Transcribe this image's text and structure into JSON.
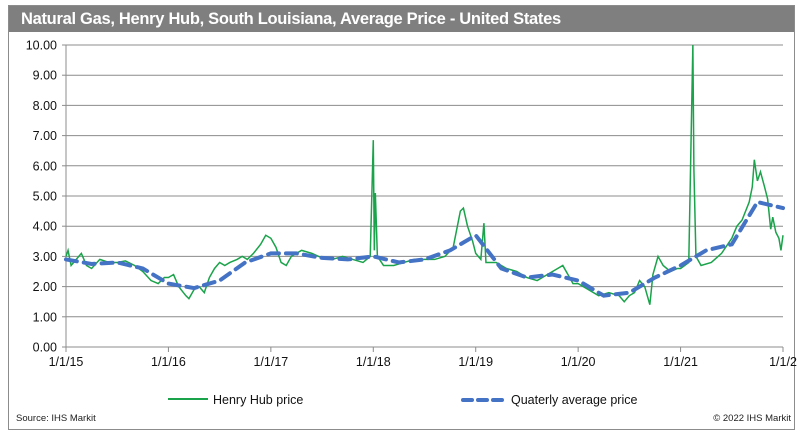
{
  "chart_data": {
    "type": "line",
    "title": "Natural Gas, Henry Hub, South Louisiana, Average Price - United States",
    "xlabel": "",
    "ylabel": "",
    "ylim": [
      0,
      10
    ],
    "xlim": [
      2015,
      2022
    ],
    "yticks": [
      "0.00",
      "1.00",
      "2.00",
      "3.00",
      "4.00",
      "5.00",
      "6.00",
      "7.00",
      "8.00",
      "9.00",
      "10.00"
    ],
    "xticks": [
      {
        "label": "1/1/15",
        "x": 2015
      },
      {
        "label": "1/1/16",
        "x": 2016
      },
      {
        "label": "1/1/17",
        "x": 2017
      },
      {
        "label": "1/1/18",
        "x": 2018
      },
      {
        "label": "1/1/19",
        "x": 2019
      },
      {
        "label": "1/1/20",
        "x": 2020
      },
      {
        "label": "1/1/21",
        "x": 2021
      },
      {
        "label": "1/1/2",
        "x": 2022
      }
    ],
    "grid": "horizontal",
    "legend_position": "bottom",
    "series": [
      {
        "name": "Henry Hub price",
        "color": "#1aa34a",
        "style": "solid",
        "x": [
          2015.0,
          2015.02,
          2015.05,
          2015.1,
          2015.15,
          2015.2,
          2015.25,
          2015.33,
          2015.42,
          2015.5,
          2015.58,
          2015.67,
          2015.75,
          2015.83,
          2015.9,
          2015.96,
          2016.0,
          2016.05,
          2016.1,
          2016.17,
          2016.2,
          2016.25,
          2016.3,
          2016.35,
          2016.4,
          2016.45,
          2016.5,
          2016.55,
          2016.6,
          2016.67,
          2016.72,
          2016.77,
          2016.83,
          2016.9,
          2016.95,
          2017.0,
          2017.05,
          2017.1,
          2017.15,
          2017.2,
          2017.3,
          2017.4,
          2017.5,
          2017.6,
          2017.7,
          2017.8,
          2017.9,
          2017.97,
          2018.0,
          2018.01,
          2018.02,
          2018.04,
          2018.1,
          2018.2,
          2018.3,
          2018.4,
          2018.5,
          2018.6,
          2018.7,
          2018.78,
          2018.85,
          2018.88,
          2018.92,
          2018.97,
          2019.0,
          2019.05,
          2019.08,
          2019.1,
          2019.2,
          2019.3,
          2019.4,
          2019.5,
          2019.6,
          2019.7,
          2019.8,
          2019.85,
          2019.9,
          2019.95,
          2020.0,
          2020.1,
          2020.2,
          2020.3,
          2020.4,
          2020.45,
          2020.5,
          2020.55,
          2020.6,
          2020.65,
          2020.7,
          2020.73,
          2020.78,
          2020.83,
          2020.9,
          2020.97,
          2021.0,
          2021.08,
          2021.12,
          2021.13,
          2021.15,
          2021.2,
          2021.3,
          2021.4,
          2021.5,
          2021.55,
          2021.6,
          2021.67,
          2021.7,
          2021.72,
          2021.75,
          2021.78,
          2021.82,
          2021.85,
          2021.88,
          2021.9,
          2021.93,
          2021.96,
          2021.98,
          2022.0
        ],
        "values": [
          3.0,
          3.2,
          2.7,
          2.9,
          3.1,
          2.7,
          2.6,
          2.9,
          2.8,
          2.8,
          2.85,
          2.7,
          2.5,
          2.2,
          2.1,
          2.3,
          2.3,
          2.4,
          2.0,
          1.7,
          1.6,
          1.9,
          2.0,
          1.8,
          2.3,
          2.6,
          2.8,
          2.7,
          2.8,
          2.9,
          3.0,
          2.9,
          3.1,
          3.4,
          3.7,
          3.6,
          3.3,
          2.8,
          2.7,
          3.0,
          3.2,
          3.1,
          2.95,
          2.9,
          3.0,
          2.9,
          2.8,
          3.0,
          6.85,
          3.2,
          5.1,
          3.0,
          2.7,
          2.7,
          2.8,
          2.9,
          2.9,
          2.9,
          3.0,
          3.3,
          4.5,
          4.6,
          4.0,
          3.5,
          3.1,
          2.9,
          4.1,
          2.8,
          2.8,
          2.6,
          2.5,
          2.3,
          2.2,
          2.4,
          2.6,
          2.7,
          2.4,
          2.1,
          2.1,
          1.9,
          1.7,
          1.8,
          1.7,
          1.5,
          1.7,
          1.8,
          2.2,
          2.0,
          1.4,
          2.4,
          3.0,
          2.7,
          2.5,
          2.6,
          2.6,
          2.8,
          10.0,
          5.9,
          3.0,
          2.7,
          2.8,
          3.1,
          3.6,
          4.0,
          4.2,
          4.8,
          5.3,
          6.2,
          5.5,
          5.8,
          5.3,
          4.9,
          3.9,
          4.3,
          3.8,
          3.6,
          3.2,
          3.7
        ]
      },
      {
        "name": "Quaterly average price",
        "color": "#4472c4",
        "style": "dashed",
        "x": [
          2015.0,
          2015.25,
          2015.5,
          2015.75,
          2016.0,
          2016.25,
          2016.5,
          2016.75,
          2017.0,
          2017.25,
          2017.5,
          2017.75,
          2018.0,
          2018.25,
          2018.5,
          2018.75,
          2019.0,
          2019.25,
          2019.5,
          2019.75,
          2020.0,
          2020.25,
          2020.5,
          2020.75,
          2021.0,
          2021.25,
          2021.5,
          2021.75,
          2022.0
        ],
        "values": [
          2.9,
          2.75,
          2.8,
          2.6,
          2.1,
          1.95,
          2.2,
          2.8,
          3.1,
          3.1,
          2.95,
          2.9,
          3.0,
          2.8,
          2.9,
          3.2,
          3.7,
          2.6,
          2.3,
          2.4,
          2.2,
          1.7,
          1.8,
          2.3,
          2.7,
          3.2,
          3.4,
          4.8,
          4.6
        ]
      }
    ]
  },
  "footer": {
    "source": "Source: IHS Markit",
    "copyright": "© 2022 IHS Markit"
  }
}
